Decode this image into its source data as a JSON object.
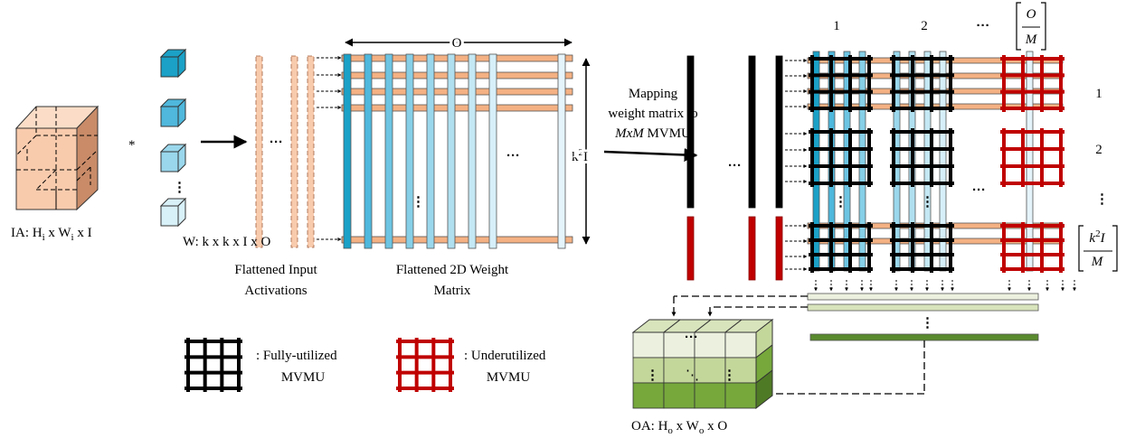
{
  "input": {
    "label": [
      "IA: H",
      "i",
      " x W",
      "i",
      " x I"
    ],
    "operator": "*",
    "weights_label": "W: k x k x I x O",
    "ellipsis": "⋮"
  },
  "flattened_inputs": {
    "caption": [
      "Flattened Input",
      "Activations"
    ],
    "ellipsis": "···"
  },
  "weight_matrix": {
    "caption": [
      "Flattened 2D Weight",
      "Matrix"
    ],
    "width_label": "O",
    "height_label": [
      "k",
      "2",
      "I"
    ],
    "col_ellipsis": "···",
    "row_ellipsis": "⋮"
  },
  "mapping": {
    "lines": [
      "Mapping",
      "weight matrix to"
    ],
    "mxm": "MxM",
    "mvmu": " MVMU"
  },
  "mvmu_array": {
    "column_labels": [
      "1",
      "2",
      "···"
    ],
    "last_column": {
      "numerator": "O",
      "denominator": "M"
    },
    "row_labels": [
      "1",
      "2",
      "⋮"
    ],
    "last_row": {
      "numerator": [
        "k",
        "2",
        "I"
      ],
      "denominator": "M"
    },
    "input_ellipsis": "···",
    "ellipsis": [
      "···",
      "⋮",
      "⋮"
    ],
    "output_ellipsis": "⋮"
  },
  "legend": [
    {
      "label": [
        ": Fully-utilized",
        "MVMU"
      ]
    },
    {
      "label": [
        ": Underutilized",
        "MVMU"
      ]
    }
  ],
  "output": {
    "label": [
      "OA: H",
      "o",
      " x W",
      "o",
      " x O"
    ],
    "cube_marks": [
      "···",
      "⋮",
      "⋱",
      "⋮"
    ]
  }
}
